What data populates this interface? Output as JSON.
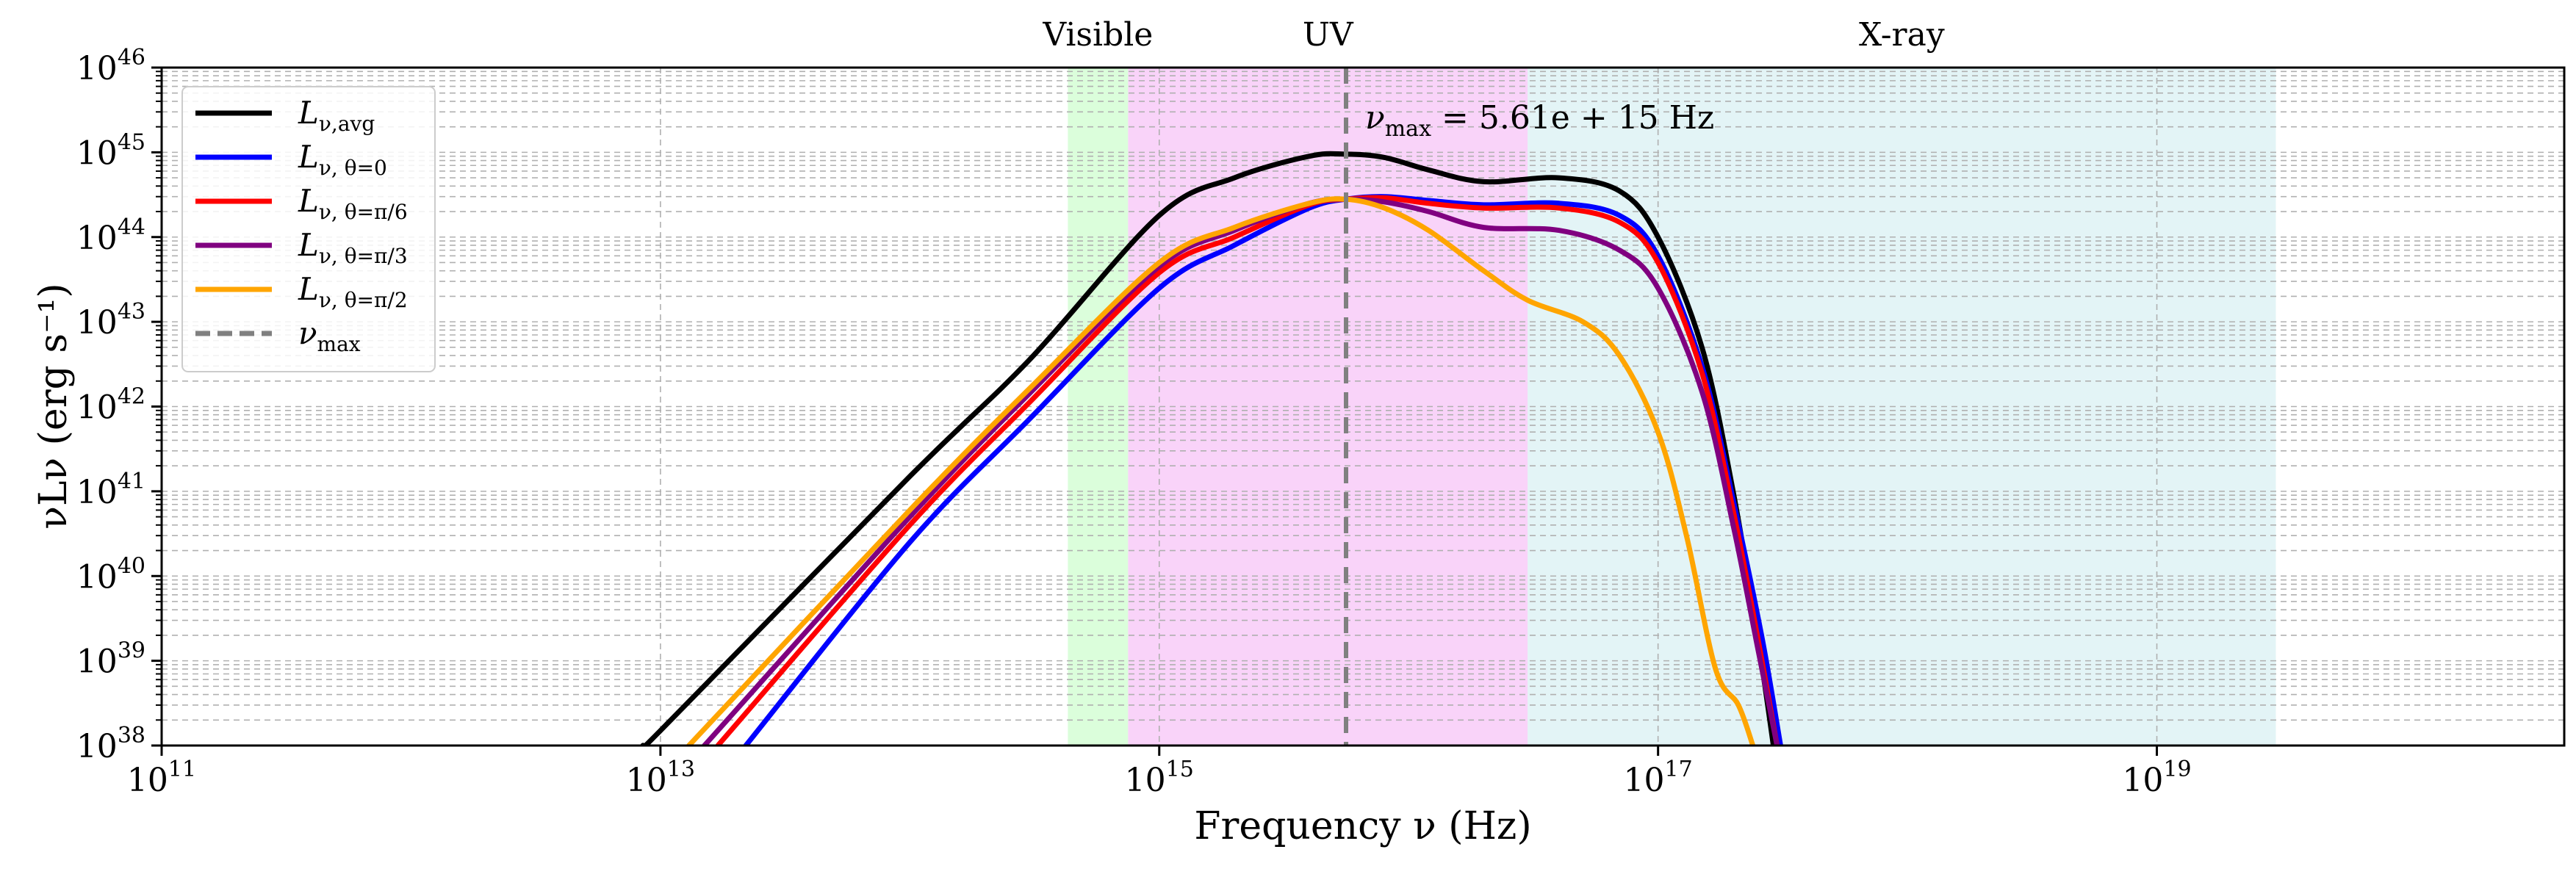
{
  "chart_data": {
    "type": "line",
    "title": "",
    "xlabel": "Frequency ν (Hz)",
    "ylabel": "νLν (erg s⁻¹)",
    "xscale": "log",
    "yscale": "log",
    "xlim": [
      100000000000.0,
      4.3e+20
    ],
    "ylim": [
      1e+38,
      1e+46
    ],
    "grid": true,
    "legend_position": "top-left",
    "x_ticks": [
      {
        "value": 100000000000.0,
        "base": "10",
        "exp": "11"
      },
      {
        "value": 10000000000000.0,
        "base": "10",
        "exp": "13"
      },
      {
        "value": 1000000000000000.0,
        "base": "10",
        "exp": "15"
      },
      {
        "value": 1e+17,
        "base": "10",
        "exp": "17"
      },
      {
        "value": 1e+19,
        "base": "10",
        "exp": "19"
      }
    ],
    "y_ticks": [
      {
        "value": 1e+38,
        "base": "10",
        "exp": "38"
      },
      {
        "value": 1e+39,
        "base": "10",
        "exp": "39"
      },
      {
        "value": 1e+40,
        "base": "10",
        "exp": "40"
      },
      {
        "value": 1e+41,
        "base": "10",
        "exp": "41"
      },
      {
        "value": 1e+42,
        "base": "10",
        "exp": "42"
      },
      {
        "value": 1e+43,
        "base": "10",
        "exp": "43"
      },
      {
        "value": 1e+44,
        "base": "10",
        "exp": "44"
      },
      {
        "value": 1e+45,
        "base": "10",
        "exp": "45"
      },
      {
        "value": 1e+46,
        "base": "10",
        "exp": "46"
      }
    ],
    "bands": [
      {
        "label": "Visible",
        "x0": 430000000000000.0,
        "x1": 750000000000000.0,
        "color": "#98fb98",
        "opacity": 0.35
      },
      {
        "label": "UV",
        "x0": 750000000000000.0,
        "x1": 3e+16,
        "color": "#ee82ee",
        "opacity": 0.35
      },
      {
        "label": "X-ray",
        "x0": 3e+16,
        "x1": 3e+19,
        "color": "#b0e0e6",
        "opacity": 0.35
      }
    ],
    "vline": {
      "x": 5610000000000000.0,
      "color": "#808080",
      "annotation": {
        "prefix": "ν",
        "sub": "max",
        "suffix": " = 5.61e + 15 Hz"
      }
    },
    "series": [
      {
        "name": "Lν,avg",
        "name_main": "L",
        "name_sub": "ν,avg",
        "color": "#000000",
        "x": [
          8500000000000.0,
          10000000000000.0,
          100000000000000.0,
          300000000000000.0,
          1000000000000000.0,
          2000000000000000.0,
          4000000000000000.0,
          5610000000000000.0,
          8000000000000000.0,
          1.2e+16,
          2e+16,
          4e+16,
          7e+16,
          1e+17,
          1.5e+17,
          2e+17,
          2.5e+17,
          2.9e+17
        ],
        "y": [
          1e+38,
          1.5e+38,
          1.5e+41,
          3.5e+42,
          1.8e+44,
          5e+44,
          9e+44,
          9.5e+44,
          8.7e+44,
          6.2e+44,
          4.5e+44,
          5e+44,
          3.5e+44,
          1e+44,
          5e+42,
          1e+41,
          2e+39,
          1e+38
        ]
      },
      {
        "name": "Lν,θ=0",
        "name_main": "L",
        "name_sub": "ν, θ=0",
        "color": "#0000ff",
        "x": [
          22000000000000.0,
          100000000000000.0,
          300000000000000.0,
          1000000000000000.0,
          2000000000000000.0,
          4000000000000000.0,
          5610000000000000.0,
          8000000000000000.0,
          1.2e+16,
          2e+16,
          4e+16,
          7e+16,
          1e+17,
          1.5e+17,
          2e+17,
          2.6e+17,
          3.1e+17
        ],
        "y": [
          1e+38,
          2.5e+40,
          7e+41,
          2.5e+43,
          8e+43,
          2.2e+44,
          2.8e+44,
          3e+44,
          2.7e+44,
          2.4e+44,
          2.5e+44,
          1.8e+44,
          6e+43,
          3e+42,
          8e+40,
          2e+39,
          1e+38
        ]
      },
      {
        "name": "Lν,θ=π/6",
        "name_main": "L",
        "name_sub": "ν, θ=π/6",
        "color": "#ff0000",
        "x": [
          17000000000000.0,
          100000000000000.0,
          300000000000000.0,
          1000000000000000.0,
          2000000000000000.0,
          4000000000000000.0,
          5610000000000000.0,
          8000000000000000.0,
          1.2e+16,
          2e+16,
          4e+16,
          7e+16,
          1e+17,
          1.5e+17,
          2e+17,
          2.5e+17,
          3e+17
        ],
        "y": [
          1e+38,
          4e+40,
          1.1e+42,
          3.8e+43,
          1e+44,
          2.4e+44,
          2.8e+44,
          2.9e+44,
          2.5e+44,
          2.2e+44,
          2.2e+44,
          1.5e+44,
          5e+43,
          2.5e+42,
          6e+40,
          2e+39,
          1e+38
        ]
      },
      {
        "name": "Lν,θ=π/3",
        "name_main": "L",
        "name_sub": "ν, θ=π/3",
        "color": "#800080",
        "x": [
          15000000000000.0,
          100000000000000.0,
          300000000000000.0,
          1000000000000000.0,
          2000000000000000.0,
          4000000000000000.0,
          5610000000000000.0,
          8000000000000000.0,
          1.2e+16,
          2e+16,
          4e+16,
          7e+16,
          1e+17,
          1.5e+17,
          2e+17,
          2.5e+17,
          3e+17
        ],
        "y": [
          1e+38,
          5e+40,
          1.4e+42,
          4.5e+43,
          1.2e+44,
          2.5e+44,
          2.8e+44,
          2.6e+44,
          2e+44,
          1.3e+44,
          1.2e+44,
          7e+43,
          2.5e+43,
          1.5e+42,
          4e+40,
          1.5e+39,
          1e+38
        ]
      },
      {
        "name": "Lν,θ=π/2",
        "name_main": "L",
        "name_sub": "ν, θ=π/2",
        "color": "#ffa500",
        "x": [
          13000000000000.0,
          100000000000000.0,
          300000000000000.0,
          1000000000000000.0,
          2000000000000000.0,
          4000000000000000.0,
          5610000000000000.0,
          8000000000000000.0,
          1.2e+16,
          2e+16,
          3e+16,
          5e+16,
          7e+16,
          1e+17,
          1.3e+17,
          1.7e+17,
          2.1e+17,
          2.4e+17
        ],
        "y": [
          1e+38,
          6e+40,
          1.6e+42,
          5e+43,
          1.3e+44,
          2.5e+44,
          2.8e+44,
          2.2e+44,
          1.2e+44,
          4e+43,
          1.8e+43,
          1e+43,
          4e+42,
          5e+41,
          3e+40,
          8e+38,
          3e+38,
          1e+38
        ]
      }
    ],
    "legend": [
      {
        "main": "L",
        "sub": "ν,avg",
        "color": "#000000",
        "style": "solid"
      },
      {
        "main": "L",
        "sub": "ν, θ=0",
        "color": "#0000ff",
        "style": "solid"
      },
      {
        "main": "L",
        "sub": "ν, θ=π/6",
        "color": "#ff0000",
        "style": "solid"
      },
      {
        "main": "L",
        "sub": "ν, θ=π/3",
        "color": "#800080",
        "style": "solid"
      },
      {
        "main": "L",
        "sub": "ν, θ=π/2",
        "color": "#ffa500",
        "style": "solid"
      },
      {
        "main": "ν",
        "sub": "max",
        "color": "#808080",
        "style": "dashed"
      }
    ]
  }
}
